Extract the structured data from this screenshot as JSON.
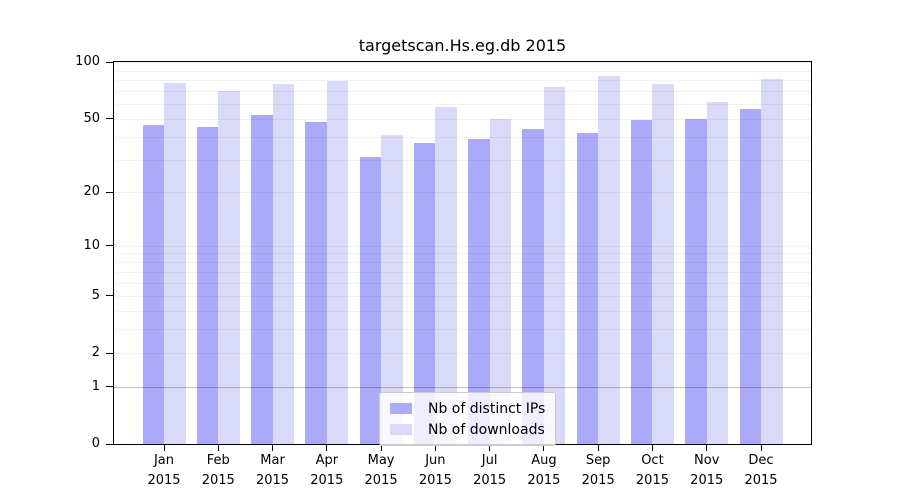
{
  "figure": {
    "title": "targetscan.Hs.eg.db 2015"
  },
  "chart_data": {
    "type": "bar",
    "title": "targetscan.Hs.eg.db 2015",
    "categories": [
      "Jan",
      "Feb",
      "Mar",
      "Apr",
      "May",
      "Jun",
      "Jul",
      "Aug",
      "Sep",
      "Oct",
      "Nov",
      "Dec"
    ],
    "category_year": "2015",
    "series": [
      {
        "name": "Nb of distinct IPs",
        "color": "#aaaaf8",
        "values": [
          46,
          45,
          52,
          48,
          31,
          37,
          39,
          44,
          42,
          49,
          50,
          56
        ]
      },
      {
        "name": "Nb of downloads",
        "color": "#d9d9f8",
        "values": [
          77,
          70,
          76,
          79,
          41,
          58,
          50,
          74,
          84,
          76,
          61,
          81
        ]
      }
    ],
    "xlabel": "",
    "ylabel": "",
    "yscale": "log1p",
    "ylim": [
      0,
      100
    ],
    "yticks": [
      0,
      1,
      2,
      5,
      10,
      20,
      50,
      100
    ],
    "minor_gridlines": [
      2,
      3,
      4,
      5,
      6,
      7,
      8,
      9,
      10,
      20,
      30,
      40,
      50,
      60,
      70,
      80,
      90,
      100
    ],
    "emphasized_gridline": 1,
    "grid": true,
    "legend_position": "bottom-center"
  }
}
